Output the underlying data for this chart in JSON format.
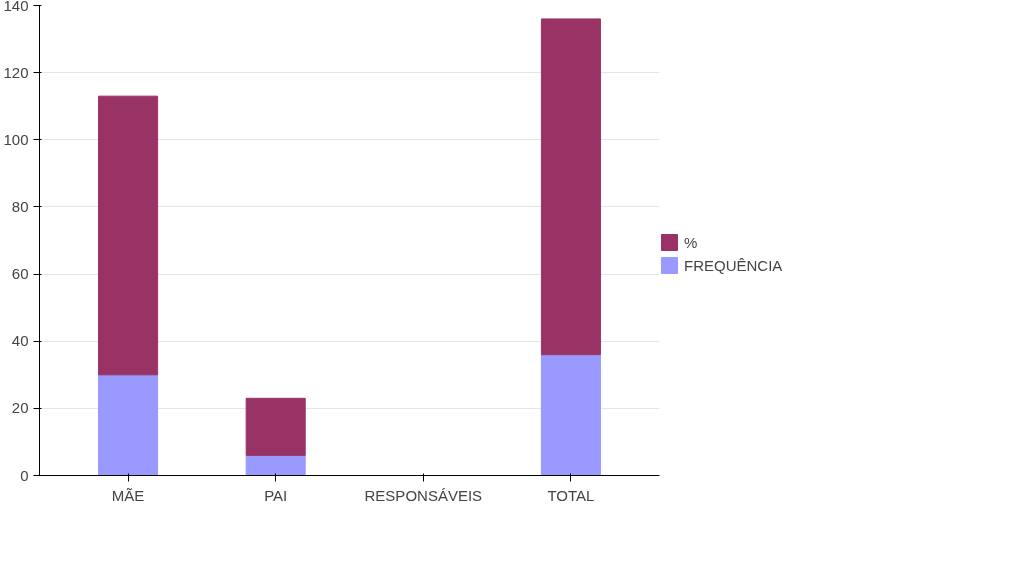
{
  "chart_data": {
    "type": "bar",
    "stacked": true,
    "categories": [
      "MÃE",
      "PAI",
      "RESPONSÁVEIS",
      "TOTAL"
    ],
    "series": [
      {
        "name": "FREQUÊNCIA",
        "color": "#9999ff",
        "values": [
          30,
          6,
          0,
          36
        ]
      },
      {
        "name": "%",
        "color": "#993366",
        "values": [
          83,
          17,
          0,
          100
        ]
      }
    ],
    "ylim": [
      0,
      140
    ],
    "yticks": [
      0,
      20,
      40,
      60,
      80,
      100,
      120,
      140
    ],
    "grid": "y",
    "legend": "right"
  }
}
